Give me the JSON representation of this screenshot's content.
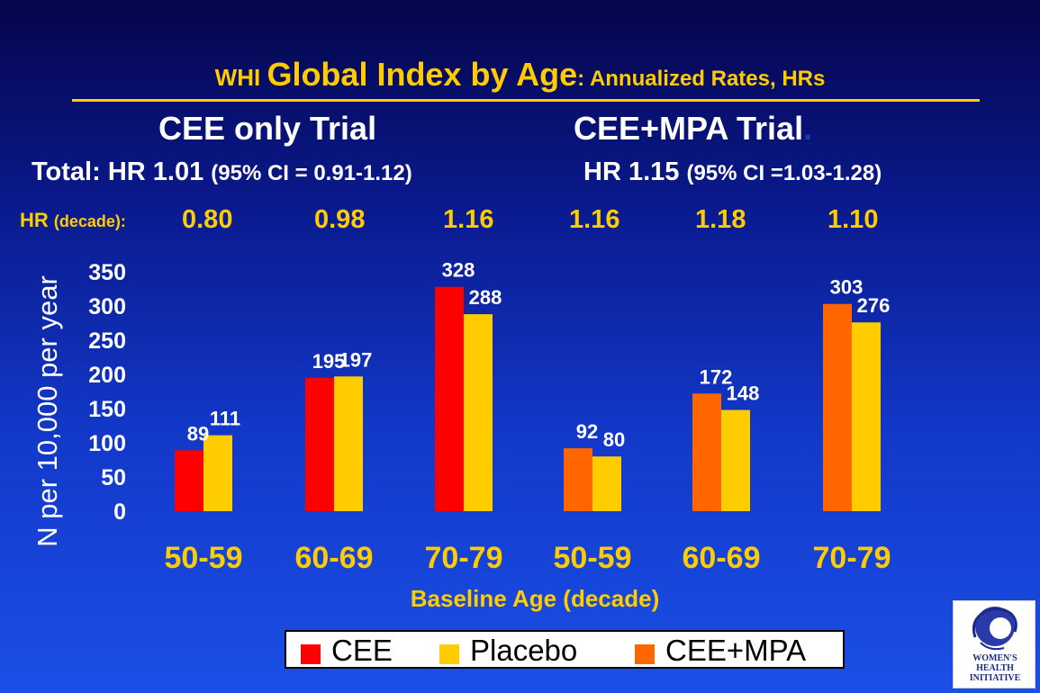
{
  "title": {
    "part1": "WHI ",
    "part2": "Global Index by Age",
    "part3": ": Annualized Rates, HRs"
  },
  "trials": {
    "cee_only": "CEE only Trial",
    "cee_mpa": "CEE+MPA Trial",
    "cee_mpa_dot": "."
  },
  "totals": {
    "left_prefix": "Total: HR 1.01 ",
    "left_ci": "(95% CI = 0.91-1.12)",
    "right_prefix": "HR 1.15 ",
    "right_ci": "(95% CI =1.03-1.28)"
  },
  "hr_decade": {
    "label": "HR ",
    "label_small": "(decade): ",
    "values": [
      "0.80",
      "0.98",
      "1.16",
      "1.16",
      "1.18",
      "1.10"
    ]
  },
  "legend": [
    {
      "label": "CEE",
      "color": "#ff0000"
    },
    {
      "label": "Placebo",
      "color": "#ffcc00"
    },
    {
      "label": "CEE+MPA",
      "color": "#ff6600"
    }
  ],
  "logo": {
    "line1": "WOMEN'S",
    "line2": "HEALTH",
    "line3": "INITIATIVE"
  },
  "chart_data": {
    "type": "bar",
    "ylabel": "N per 10,000 per year",
    "xlabel": "Baseline Age (decade)",
    "ylim": [
      0,
      350
    ],
    "yticks": [
      0,
      50,
      100,
      150,
      200,
      250,
      300,
      350
    ],
    "categories": [
      "50-59",
      "60-69",
      "70-79",
      "50-59",
      "60-69",
      "70-79"
    ],
    "series": [
      {
        "name": "CEE",
        "color": "#ff0000",
        "values": [
          89,
          195,
          328,
          null,
          null,
          null
        ]
      },
      {
        "name": "CEE+MPA",
        "color": "#ff6600",
        "values": [
          null,
          null,
          null,
          92,
          172,
          303
        ]
      },
      {
        "name": "Placebo",
        "color": "#ffcc00",
        "values": [
          111,
          197,
          288,
          80,
          148,
          276
        ]
      }
    ],
    "data_labels": [
      [
        "89",
        "111"
      ],
      [
        "195",
        "197"
      ],
      [
        "328",
        "288"
      ],
      [
        "92",
        "80"
      ],
      [
        "172",
        "148"
      ],
      [
        "303",
        "276"
      ]
    ],
    "grid": false,
    "legend_position": "bottom"
  }
}
